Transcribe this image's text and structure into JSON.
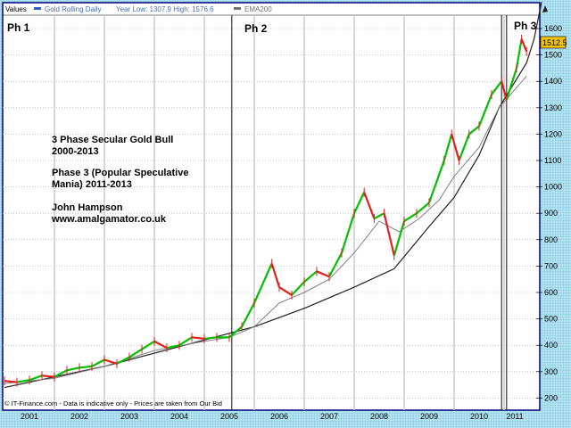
{
  "header": {
    "values_label": "Values",
    "series_label": "Gold Rolling Daily",
    "year_range": "Year Low: 1307.9 High: 1576.6",
    "ema_label": "EMA200"
  },
  "phase_labels": [
    "Ph 1",
    "Ph 2",
    "Ph 3"
  ],
  "annotation": [
    "3 Phase Secular Gold Bull",
    "2000-2013",
    "Phase 3 (Popular Speculative",
    "Mania) 2011-2013",
    "John Hampson",
    "www.amalgamator.co.uk"
  ],
  "footer": "© IT-Finance.com - Data is indicative only - Prices are taken from Our Bid",
  "last_price_label": "1512.5",
  "colors": {
    "up": "#00c000",
    "down": "#e02020",
    "ema": "#808080",
    "trend": "#202020",
    "price_box": "#f5c400",
    "frame": "#000080"
  },
  "chart_data": {
    "type": "line",
    "xlabel": "",
    "ylabel": "",
    "x_tick_labels": [
      "2001",
      "2002",
      "2003",
      "2004",
      "2005",
      "2006",
      "2007",
      "2008",
      "2009",
      "2010",
      "2011"
    ],
    "y_ticks": [
      200,
      300,
      400,
      500,
      600,
      700,
      800,
      900,
      1000,
      1100,
      1200,
      1300,
      1400,
      1500,
      1600
    ],
    "ylim": [
      170,
      1650
    ],
    "xlim": [
      2000.9,
      2011.8
    ],
    "grid": true,
    "phase_boundaries": [
      2005.55,
      2010.95,
      2011.05
    ],
    "series": [
      {
        "name": "Gold Rolling Daily",
        "points": [
          [
            2001.0,
            265
          ],
          [
            2001.25,
            260
          ],
          [
            2001.5,
            268
          ],
          [
            2001.75,
            285
          ],
          [
            2002.0,
            280
          ],
          [
            2002.25,
            305
          ],
          [
            2002.5,
            315
          ],
          [
            2002.75,
            320
          ],
          [
            2003.0,
            345
          ],
          [
            2003.25,
            330
          ],
          [
            2003.5,
            355
          ],
          [
            2003.75,
            385
          ],
          [
            2004.0,
            415
          ],
          [
            2004.25,
            390
          ],
          [
            2004.5,
            400
          ],
          [
            2004.75,
            430
          ],
          [
            2005.0,
            425
          ],
          [
            2005.25,
            430
          ],
          [
            2005.5,
            430
          ],
          [
            2005.75,
            470
          ],
          [
            2006.0,
            560
          ],
          [
            2006.35,
            710
          ],
          [
            2006.5,
            620
          ],
          [
            2006.75,
            590
          ],
          [
            2007.0,
            640
          ],
          [
            2007.25,
            680
          ],
          [
            2007.5,
            660
          ],
          [
            2007.75,
            750
          ],
          [
            2008.0,
            900
          ],
          [
            2008.2,
            980
          ],
          [
            2008.4,
            880
          ],
          [
            2008.6,
            900
          ],
          [
            2008.8,
            740
          ],
          [
            2009.0,
            870
          ],
          [
            2009.25,
            900
          ],
          [
            2009.5,
            940
          ],
          [
            2009.8,
            1100
          ],
          [
            2009.95,
            1200
          ],
          [
            2010.1,
            1100
          ],
          [
            2010.3,
            1200
          ],
          [
            2010.5,
            1230
          ],
          [
            2010.75,
            1350
          ],
          [
            2010.95,
            1400
          ],
          [
            2011.05,
            1330
          ],
          [
            2011.25,
            1450
          ],
          [
            2011.35,
            1560
          ],
          [
            2011.45,
            1512.5
          ]
        ]
      },
      {
        "name": "EMA200",
        "points": [
          [
            2001.0,
            255
          ],
          [
            2002.0,
            275
          ],
          [
            2003.0,
            320
          ],
          [
            2004.0,
            380
          ],
          [
            2005.0,
            415
          ],
          [
            2005.5,
            430
          ],
          [
            2006.0,
            470
          ],
          [
            2006.5,
            560
          ],
          [
            2007.0,
            600
          ],
          [
            2007.5,
            650
          ],
          [
            2008.0,
            750
          ],
          [
            2008.5,
            870
          ],
          [
            2008.9,
            830
          ],
          [
            2009.3,
            880
          ],
          [
            2009.7,
            950
          ],
          [
            2010.0,
            1040
          ],
          [
            2010.5,
            1150
          ],
          [
            2010.9,
            1300
          ],
          [
            2011.45,
            1420
          ]
        ]
      },
      {
        "points": [
          [
            2001.0,
            240
          ],
          [
            2003.0,
            320
          ],
          [
            2005.0,
            420
          ],
          [
            2006.0,
            470
          ],
          [
            2007.0,
            540
          ],
          [
            2008.0,
            620
          ],
          [
            2008.8,
            690
          ],
          [
            2009.5,
            850
          ],
          [
            2010.0,
            960
          ],
          [
            2010.5,
            1120
          ],
          [
            2010.9,
            1300
          ],
          [
            2011.45,
            1470
          ],
          [
            2011.6,
            1560
          ],
          [
            2011.75,
            1700
          ]
        ]
      }
    ]
  }
}
